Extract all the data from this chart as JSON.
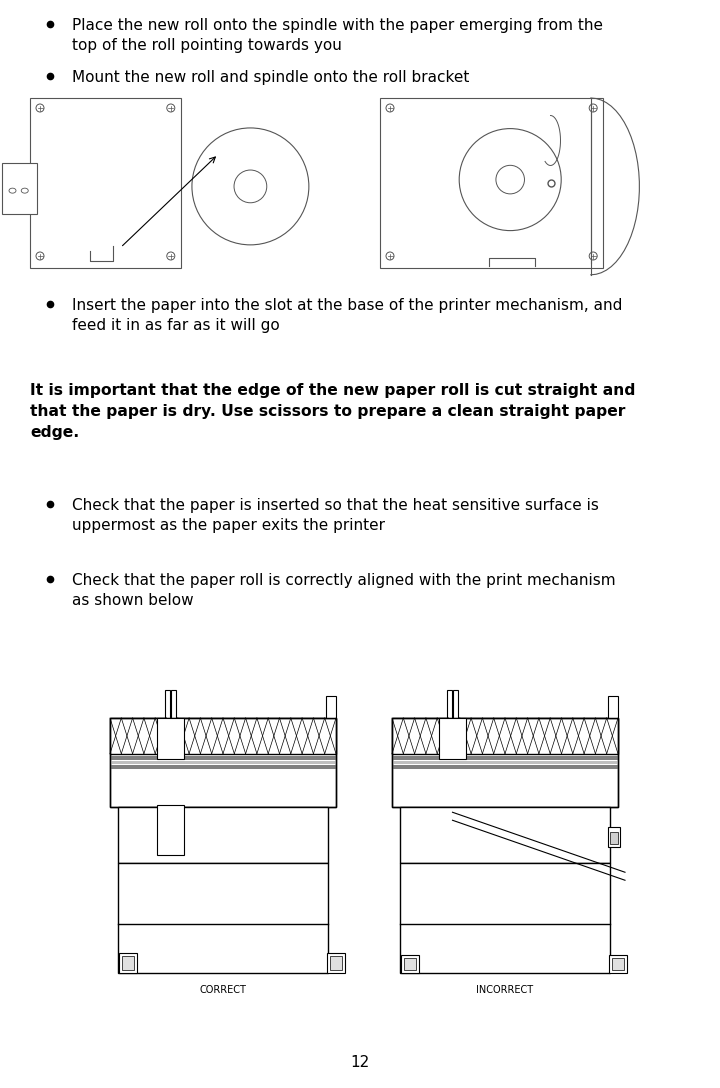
{
  "page_number": "12",
  "background_color": "#ffffff",
  "text_color": "#000000",
  "bullet1": "Place the new roll onto the spindle with the paper emerging from the\ntop of the roll pointing towards you",
  "bullet2": "Mount the new roll and spindle onto the roll bracket",
  "bullet3": "Insert the paper into the slot at the base of the printer mechanism, and\nfeed it in as far as it will go",
  "bullet4": "Check that the paper is inserted so that the heat sensitive surface is\nuppermost as the paper exits the printer",
  "bullet5": "Check that the paper roll is correctly aligned with the print mechanism\nas shown below",
  "important_text": "It is important that the edge of the new paper roll is cut straight and\nthat the paper is dry. Use scissors to prepare a clean straight paper\nedge.",
  "correct_label": "CORRECT",
  "incorrect_label": "INCORRECT",
  "font_family": "DejaVu Sans"
}
